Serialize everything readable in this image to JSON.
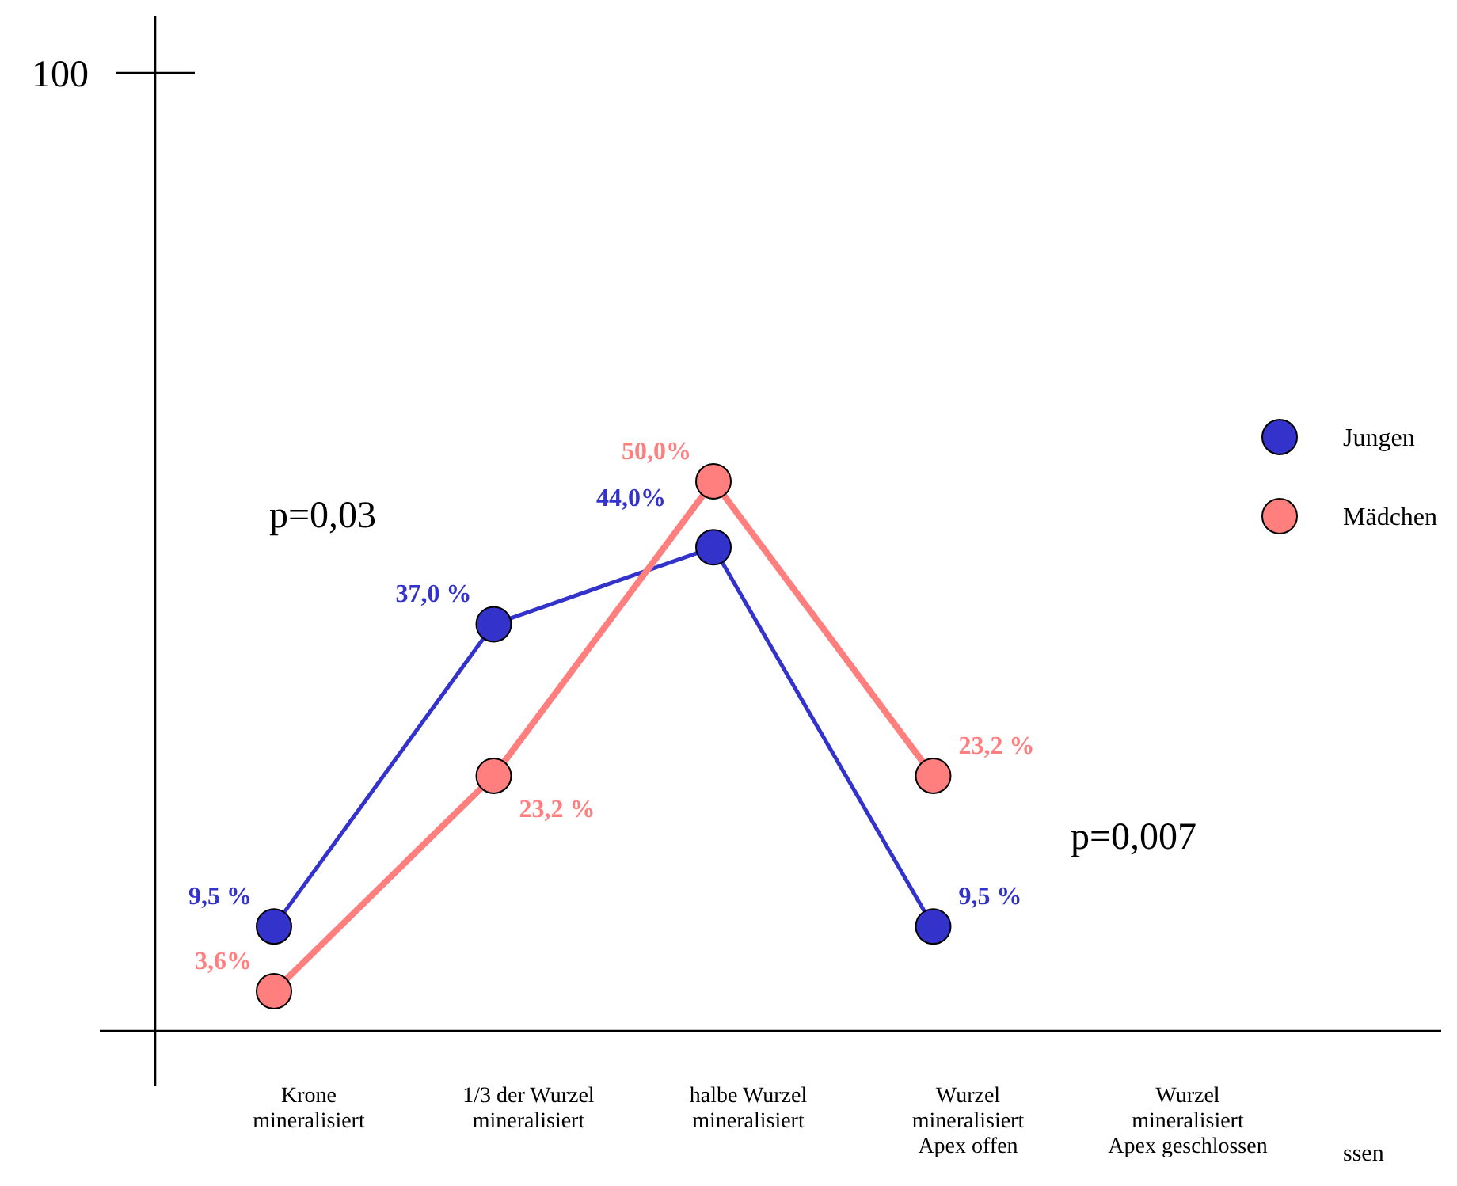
{
  "chart_data": {
    "type": "line",
    "categories": [
      "Krone\nmineralisiert",
      "1/3 der Wurzel\nmineralisiert",
      "halbe Wurzel\nmineralisiert",
      "Wurzel\nmineralisiert\nApex offen",
      "Wurzel\nmineralisiert\nApex geschlossen"
    ],
    "series": [
      {
        "name": "Jungen",
        "color": "#3333cc",
        "values": [
          9.5,
          37.0,
          44.0,
          9.5,
          null
        ],
        "value_labels": [
          "9,5 %",
          "37,0 %",
          "44,0%",
          "9,5 %",
          null
        ]
      },
      {
        "name": "Mädchen",
        "color": "#ff7f7f",
        "values": [
          3.6,
          23.2,
          50.0,
          23.2,
          null
        ],
        "value_labels": [
          "3,6%",
          "23,2 %",
          "50,0%",
          "23,2 %",
          null
        ]
      }
    ],
    "marker": "circle",
    "legend": "right",
    "annotations": [
      "p=0,03",
      "p=0,007",
      "ssen",
      "100"
    ]
  }
}
